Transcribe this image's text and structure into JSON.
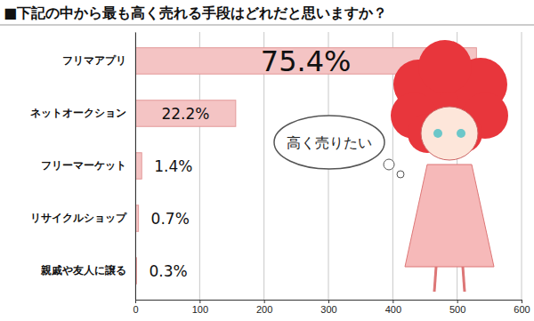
{
  "chart_data": {
    "type": "bar",
    "orientation": "horizontal",
    "title": "■下記の中から最も高く売れる手段はどれだと思いますか？",
    "categories": [
      "フリマアプリ",
      "ネットオークション",
      "フリーマーケット",
      "リサイクルショップ",
      "親戚や友人に譲る"
    ],
    "values": [
      530,
      156,
      10,
      5,
      2
    ],
    "value_labels": [
      "75.4%",
      "22.2%",
      "1.4%",
      "0.7%",
      "0.3%"
    ],
    "color": "#f4c4c4",
    "xlim": [
      0,
      600
    ],
    "xticks": [
      0,
      100,
      200,
      300,
      400,
      500,
      600
    ],
    "grid": true,
    "annotation": "高く売りたい"
  }
}
